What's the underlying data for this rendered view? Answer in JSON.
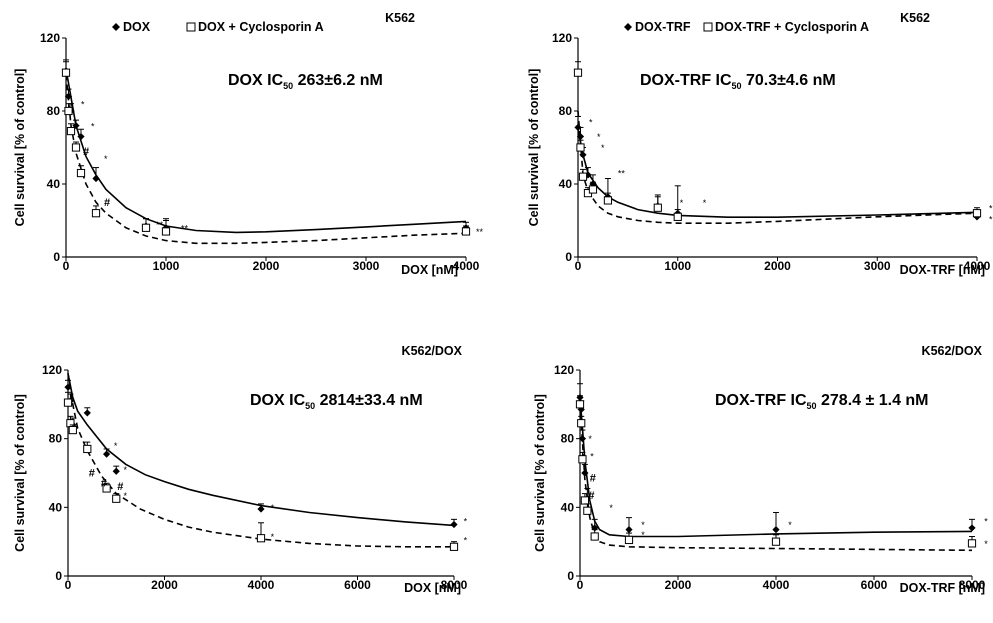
{
  "chart_data": [
    {
      "type": "scatter",
      "cell_line": "K562",
      "ic50_label": "DOX IC",
      "ic50_sub": "50",
      "ic50_value": " 263±6.2 nM",
      "xlabel": "DOX [nM]",
      "ylabel": "Cell survival [% of control]",
      "xlim": [
        0,
        4000
      ],
      "ylim": [
        0,
        120
      ],
      "xticks": [
        "0",
        "1000",
        "2000",
        "3000",
        "4000"
      ],
      "yticks": [
        "0",
        "40",
        "80",
        "120"
      ],
      "legend": [
        "DOX",
        "DOX + Cyclosporin A"
      ],
      "series": [
        {
          "name": "DOX",
          "marker": "filled-diamond",
          "line": "solid",
          "points": [
            [
              0,
              102,
              6
            ],
            [
              25,
              88,
              4
            ],
            [
              50,
              80,
              4
            ],
            [
              100,
              72,
              3
            ],
            [
              150,
              66,
              4
            ],
            [
              300,
              43,
              6
            ],
            [
              800,
              17,
              4
            ],
            [
              1000,
              16,
              5
            ],
            [
              4000,
              16,
              3
            ]
          ],
          "fit": [
            [
              0,
              103
            ],
            [
              100,
              72
            ],
            [
              200,
              55
            ],
            [
              300,
              45
            ],
            [
              400,
              37
            ],
            [
              600,
              27
            ],
            [
              800,
              21
            ],
            [
              1000,
              17
            ],
            [
              1300,
              14.5
            ],
            [
              1700,
              13.5
            ],
            [
              2000,
              13.8
            ],
            [
              2500,
              15
            ],
            [
              3000,
              16.5
            ],
            [
              3500,
              18
            ],
            [
              4000,
              19.5
            ]
          ]
        },
        {
          "name": "DOX + Cyclosporin A",
          "marker": "open-square",
          "line": "dashed",
          "points": [
            [
              0,
              101,
              6
            ],
            [
              25,
              80,
              4
            ],
            [
              50,
              69,
              4
            ],
            [
              100,
              60,
              3
            ],
            [
              150,
              46,
              4
            ],
            [
              300,
              24,
              4
            ],
            [
              800,
              16,
              5
            ],
            [
              1000,
              14,
              6
            ],
            [
              4000,
              14,
              3
            ]
          ],
          "fit": [
            [
              0,
              100
            ],
            [
              50,
              72
            ],
            [
              100,
              57
            ],
            [
              200,
              40
            ],
            [
              300,
              30
            ],
            [
              400,
              24
            ],
            [
              600,
              16
            ],
            [
              800,
              11.5
            ],
            [
              1000,
              9
            ],
            [
              1300,
              7.5
            ],
            [
              1700,
              7.5
            ],
            [
              2000,
              8
            ],
            [
              2500,
              9
            ],
            [
              3000,
              10.5
            ],
            [
              3500,
              12
            ],
            [
              4000,
              13
            ]
          ]
        }
      ],
      "annotations": [
        {
          "text": "*",
          "x": 150,
          "y": 82
        },
        {
          "text": "*",
          "x": 250,
          "y": 70
        },
        {
          "text": "#",
          "x": 170,
          "y": 56
        },
        {
          "text": "*",
          "x": 380,
          "y": 52
        },
        {
          "text": "#",
          "x": 380,
          "y": 28
        },
        {
          "text": "**",
          "x": 900,
          "y": 16
        },
        {
          "text": "**",
          "x": 1150,
          "y": 14
        },
        {
          "text": "**",
          "x": 4100,
          "y": 12
        }
      ]
    },
    {
      "type": "scatter",
      "cell_line": "K562",
      "ic50_label": "DOX-TRF IC",
      "ic50_sub": "50",
      "ic50_value": " 70.3±4.6 nM",
      "xlabel": "DOX-TRF [nM]",
      "ylabel": "Cell survival [% of control]",
      "xlim": [
        0,
        4000
      ],
      "ylim": [
        0,
        120
      ],
      "xticks": [
        "0",
        "1000",
        "2000",
        "3000",
        "4000"
      ],
      "yticks": [
        "0",
        "40",
        "80",
        "120"
      ],
      "legend": [
        "DOX-TRF",
        "DOX-TRF + Cyclosporin A"
      ],
      "series": [
        {
          "name": "DOX-TRF",
          "marker": "filled-diamond",
          "line": "solid",
          "points": [
            [
              0,
              71,
              6
            ],
            [
              25,
              66,
              5
            ],
            [
              50,
              56,
              4
            ],
            [
              100,
              45,
              4
            ],
            [
              150,
              40,
              5
            ],
            [
              300,
              33,
              10
            ],
            [
              800,
              28,
              6
            ],
            [
              1000,
              24,
              15
            ],
            [
              4000,
              22,
              3
            ]
          ],
          "fit": [
            [
              0,
              70
            ],
            [
              50,
              56
            ],
            [
              100,
              46
            ],
            [
              200,
              38
            ],
            [
              300,
              33
            ],
            [
              400,
              30
            ],
            [
              600,
              26
            ],
            [
              800,
              24
            ],
            [
              1000,
              22.8
            ],
            [
              1500,
              21.8
            ],
            [
              2000,
              21.8
            ],
            [
              3000,
              23
            ],
            [
              4000,
              24.5
            ]
          ]
        },
        {
          "name": "DOX-TRF + Cyclosporin A",
          "marker": "open-square",
          "line": "dashed",
          "points": [
            [
              0,
              101,
              6
            ],
            [
              25,
              60,
              4
            ],
            [
              50,
              44,
              4
            ],
            [
              100,
              35,
              3
            ],
            [
              150,
              37,
              4
            ],
            [
              300,
              31,
              4
            ],
            [
              800,
              27,
              6
            ],
            [
              1000,
              22,
              4
            ],
            [
              4000,
              24,
              3
            ]
          ],
          "fit": [
            [
              0,
              80
            ],
            [
              50,
              45
            ],
            [
              100,
              36
            ],
            [
              200,
              28
            ],
            [
              300,
              24
            ],
            [
              400,
              22
            ],
            [
              600,
              20
            ],
            [
              800,
              19
            ],
            [
              1000,
              18.5
            ],
            [
              1500,
              18.5
            ],
            [
              2000,
              19.5
            ],
            [
              3000,
              22
            ],
            [
              4000,
              24
            ]
          ]
        }
      ],
      "annotations": [
        {
          "text": "*",
          "x": 110,
          "y": 72
        },
        {
          "text": "*",
          "x": 190,
          "y": 64
        },
        {
          "text": "*",
          "x": 230,
          "y": 58
        },
        {
          "text": "**",
          "x": 400,
          "y": 44
        },
        {
          "text": "*",
          "x": 1020,
          "y": 28
        },
        {
          "text": "*",
          "x": 1250,
          "y": 28
        },
        {
          "text": "*",
          "x": 4120,
          "y": 25
        },
        {
          "text": "*",
          "x": 4120,
          "y": 19
        }
      ]
    },
    {
      "type": "scatter",
      "cell_line": "K562/DOX",
      "ic50_label": "DOX IC",
      "ic50_sub": "50",
      "ic50_value": " 2814±33.4 nM",
      "xlabel": "DOX [nM]",
      "ylabel": "Cell survival [% of control]",
      "xlim": [
        0,
        8000
      ],
      "ylim": [
        0,
        120
      ],
      "xticks": [
        "0",
        "2000",
        "4000",
        "6000",
        "8000"
      ],
      "yticks": [
        "0",
        "40",
        "80",
        "120"
      ],
      "legend": [],
      "series": [
        {
          "name": "",
          "marker": "filled-diamond",
          "line": "solid",
          "points": [
            [
              0,
              110,
              4
            ],
            [
              50,
              102,
              4
            ],
            [
              100,
              88,
              4
            ],
            [
              400,
              95,
              3
            ],
            [
              800,
              71,
              3
            ],
            [
              1000,
              61,
              3
            ],
            [
              4000,
              39,
              3
            ],
            [
              8000,
              30,
              3
            ]
          ],
          "fit": [
            [
              0,
              118
            ],
            [
              100,
              104
            ],
            [
              200,
              96
            ],
            [
              400,
              88
            ],
            [
              800,
              74
            ],
            [
              1200,
              65
            ],
            [
              1600,
              59
            ],
            [
              2000,
              55
            ],
            [
              2500,
              50.5
            ],
            [
              3000,
              47
            ],
            [
              4000,
              41
            ],
            [
              5000,
              37
            ],
            [
              6000,
              34
            ],
            [
              7000,
              31.5
            ],
            [
              8000,
              29.5
            ]
          ]
        },
        {
          "name": "",
          "marker": "open-square",
          "line": "dashed",
          "points": [
            [
              0,
              101,
              6
            ],
            [
              50,
              89,
              4
            ],
            [
              100,
              85,
              3
            ],
            [
              400,
              74,
              4
            ],
            [
              800,
              51,
              3
            ],
            [
              1000,
              45,
              3
            ],
            [
              4000,
              22,
              9
            ],
            [
              8000,
              17,
              3
            ]
          ],
          "fit": [
            [
              0,
              118
            ],
            [
              100,
              100
            ],
            [
              200,
              86
            ],
            [
              400,
              73
            ],
            [
              700,
              58
            ],
            [
              1000,
              48
            ],
            [
              1500,
              39
            ],
            [
              2000,
              33
            ],
            [
              2500,
              28.5
            ],
            [
              3000,
              25.5
            ],
            [
              4000,
              21.5
            ],
            [
              5000,
              19
            ],
            [
              6000,
              17.5
            ],
            [
              7000,
              17
            ],
            [
              8000,
              17
            ]
          ]
        }
      ],
      "annotations": [
        {
          "text": "*",
          "x": 950,
          "y": 74
        },
        {
          "text": "#",
          "x": 430,
          "y": 58
        },
        {
          "text": "*",
          "x": 1150,
          "y": 60
        },
        {
          "text": "#",
          "x": 680,
          "y": 52
        },
        {
          "text": "#",
          "x": 1020,
          "y": 50
        },
        {
          "text": "*",
          "x": 1150,
          "y": 45
        },
        {
          "text": "*",
          "x": 4200,
          "y": 38
        },
        {
          "text": "*",
          "x": 4200,
          "y": 21
        },
        {
          "text": "*",
          "x": 8200,
          "y": 30
        },
        {
          "text": "*",
          "x": 8200,
          "y": 19
        }
      ]
    },
    {
      "type": "scatter",
      "cell_line": "K562/DOX",
      "ic50_label": "DOX-TRF IC",
      "ic50_sub": "50",
      "ic50_value": " 278.4 ± 1.4 nM",
      "xlabel": "DOX-TRF [nM]",
      "ylabel": "Cell survival [% of control]",
      "xlim": [
        0,
        8000
      ],
      "ylim": [
        0,
        120
      ],
      "xticks": [
        "0",
        "2000",
        "4000",
        "6000",
        "8000"
      ],
      "yticks": [
        "0",
        "40",
        "80",
        "120"
      ],
      "legend": [],
      "series": [
        {
          "name": "",
          "marker": "filled-diamond",
          "line": "solid",
          "points": [
            [
              0,
              104,
              8
            ],
            [
              25,
              97,
              5
            ],
            [
              50,
              80,
              5
            ],
            [
              100,
              60,
              5
            ],
            [
              150,
              45,
              6
            ],
            [
              300,
              28,
              5
            ],
            [
              1000,
              27,
              7
            ],
            [
              4000,
              27,
              10
            ],
            [
              8000,
              28,
              5
            ]
          ],
          "fit": [
            [
              0,
              104
            ],
            [
              50,
              86
            ],
            [
              100,
              67
            ],
            [
              200,
              44
            ],
            [
              300,
              32
            ],
            [
              400,
              27
            ],
            [
              600,
              24
            ],
            [
              1000,
              23
            ],
            [
              2000,
              23
            ],
            [
              4000,
              24.5
            ],
            [
              6000,
              25.5
            ],
            [
              8000,
              26
            ]
          ]
        },
        {
          "name": "",
          "marker": "open-square",
          "line": "dashed",
          "points": [
            [
              0,
              100,
              5
            ],
            [
              25,
              89,
              4
            ],
            [
              50,
              68,
              4
            ],
            [
              100,
              44,
              4
            ],
            [
              150,
              38,
              4
            ],
            [
              300,
              23,
              4
            ],
            [
              1000,
              21,
              4
            ],
            [
              4000,
              20,
              4
            ],
            [
              8000,
              19,
              4
            ]
          ],
          "fit": [
            [
              0,
              100
            ],
            [
              50,
              78
            ],
            [
              100,
              56
            ],
            [
              200,
              34
            ],
            [
              300,
              24
            ],
            [
              400,
              20
            ],
            [
              600,
              18
            ],
            [
              1000,
              17
            ],
            [
              2000,
              16.5
            ],
            [
              4000,
              16
            ],
            [
              6000,
              15.5
            ],
            [
              8000,
              15
            ]
          ]
        }
      ],
      "annotations": [
        {
          "text": "*",
          "x": 170,
          "y": 78
        },
        {
          "text": "*",
          "x": 210,
          "y": 68
        },
        {
          "text": "#",
          "x": 200,
          "y": 55
        },
        {
          "text": "#",
          "x": 170,
          "y": 45
        },
        {
          "text": "*",
          "x": 600,
          "y": 38
        },
        {
          "text": "*",
          "x": 1250,
          "y": 28
        },
        {
          "text": "*",
          "x": 1250,
          "y": 22
        },
        {
          "text": "*",
          "x": 4250,
          "y": 28
        },
        {
          "text": "*",
          "x": 8250,
          "y": 30
        },
        {
          "text": "*",
          "x": 8250,
          "y": 17
        }
      ]
    }
  ]
}
